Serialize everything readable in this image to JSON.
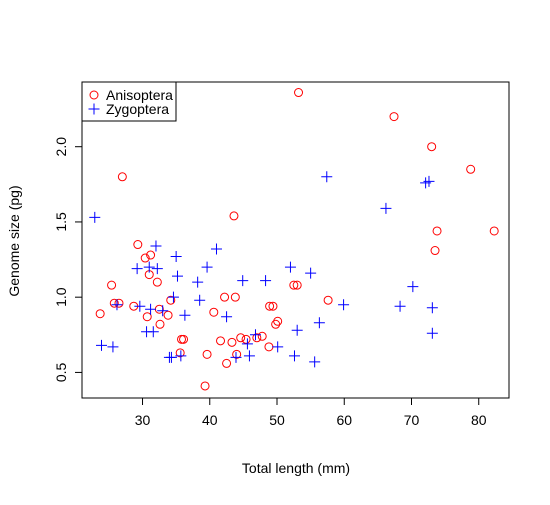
{
  "chart_data": {
    "type": "scatter",
    "title": "",
    "xlabel": "Total length (mm)",
    "ylabel": "Genome size (pg)",
    "xlim": [
      21,
      84.5
    ],
    "ylim": [
      0.33,
      2.43
    ],
    "xticks": [
      "30",
      "40",
      "50",
      "60",
      "70",
      "80"
    ],
    "yticks": [
      "0.5",
      "1.0",
      "1.5",
      "2.0"
    ],
    "legend": {
      "placement": "top-left"
    },
    "series": [
      {
        "name": "Anisoptera",
        "marker": "open-circle",
        "color": "#ff0000",
        "points": [
          [
            23.7,
            0.89
          ],
          [
            25.4,
            1.08
          ],
          [
            25.8,
            0.96
          ],
          [
            26.5,
            0.96
          ],
          [
            27.0,
            1.8
          ],
          [
            28.7,
            0.94
          ],
          [
            29.3,
            1.35
          ],
          [
            30.4,
            1.26
          ],
          [
            30.7,
            0.87
          ],
          [
            31.0,
            1.15
          ],
          [
            31.2,
            1.28
          ],
          [
            32.2,
            1.1
          ],
          [
            32.5,
            0.92
          ],
          [
            32.6,
            0.82
          ],
          [
            33.8,
            0.88
          ],
          [
            34.2,
            0.98
          ],
          [
            35.6,
            0.63
          ],
          [
            35.8,
            0.72
          ],
          [
            36.1,
            0.72
          ],
          [
            39.3,
            0.41
          ],
          [
            39.6,
            0.62
          ],
          [
            40.6,
            0.9
          ],
          [
            41.6,
            0.71
          ],
          [
            42.2,
            1.0
          ],
          [
            42.5,
            0.56
          ],
          [
            43.3,
            0.7
          ],
          [
            43.6,
            1.54
          ],
          [
            43.8,
            1.0
          ],
          [
            44.0,
            0.62
          ],
          [
            44.6,
            0.73
          ],
          [
            45.4,
            0.72
          ],
          [
            47.0,
            0.73
          ],
          [
            47.8,
            0.74
          ],
          [
            48.8,
            0.67
          ],
          [
            48.9,
            0.94
          ],
          [
            49.4,
            0.94
          ],
          [
            49.8,
            0.82
          ],
          [
            50.1,
            0.84
          ],
          [
            52.5,
            1.08
          ],
          [
            53.0,
            1.08
          ],
          [
            53.2,
            2.36
          ],
          [
            57.6,
            0.98
          ],
          [
            67.4,
            2.2
          ],
          [
            73.0,
            2.0
          ],
          [
            73.5,
            1.31
          ],
          [
            73.8,
            1.44
          ],
          [
            78.8,
            1.85
          ],
          [
            82.3,
            1.44
          ]
        ]
      },
      {
        "name": "Zygoptera",
        "marker": "plus",
        "color": "#0000ff",
        "points": [
          [
            22.9,
            1.53
          ],
          [
            23.9,
            0.68
          ],
          [
            25.6,
            0.67
          ],
          [
            26.2,
            0.95
          ],
          [
            29.2,
            1.19
          ],
          [
            29.6,
            0.94
          ],
          [
            30.6,
            0.77
          ],
          [
            31.0,
            1.2
          ],
          [
            31.2,
            0.92
          ],
          [
            31.6,
            0.77
          ],
          [
            32.0,
            1.34
          ],
          [
            32.2,
            1.19
          ],
          [
            33.0,
            0.91
          ],
          [
            34.0,
            0.6
          ],
          [
            34.3,
            0.6
          ],
          [
            34.6,
            1.0
          ],
          [
            35.0,
            1.27
          ],
          [
            35.2,
            1.14
          ],
          [
            35.7,
            0.61
          ],
          [
            36.3,
            0.88
          ],
          [
            38.2,
            1.1
          ],
          [
            38.5,
            0.98
          ],
          [
            39.6,
            1.2
          ],
          [
            41.0,
            1.32
          ],
          [
            42.5,
            0.87
          ],
          [
            43.9,
            0.6
          ],
          [
            44.9,
            1.11
          ],
          [
            45.6,
            0.69
          ],
          [
            45.9,
            0.61
          ],
          [
            46.8,
            0.75
          ],
          [
            48.3,
            1.11
          ],
          [
            50.1,
            0.67
          ],
          [
            52.0,
            1.2
          ],
          [
            52.6,
            0.61
          ],
          [
            53.0,
            0.78
          ],
          [
            55.0,
            1.16
          ],
          [
            55.6,
            0.57
          ],
          [
            56.3,
            0.83
          ],
          [
            57.4,
            1.8
          ],
          [
            59.9,
            0.95
          ],
          [
            66.2,
            1.59
          ],
          [
            68.3,
            0.94
          ],
          [
            70.2,
            1.07
          ],
          [
            72.1,
            1.76
          ],
          [
            72.6,
            1.77
          ],
          [
            73.1,
            0.93
          ],
          [
            73.1,
            0.76
          ]
        ]
      }
    ]
  }
}
